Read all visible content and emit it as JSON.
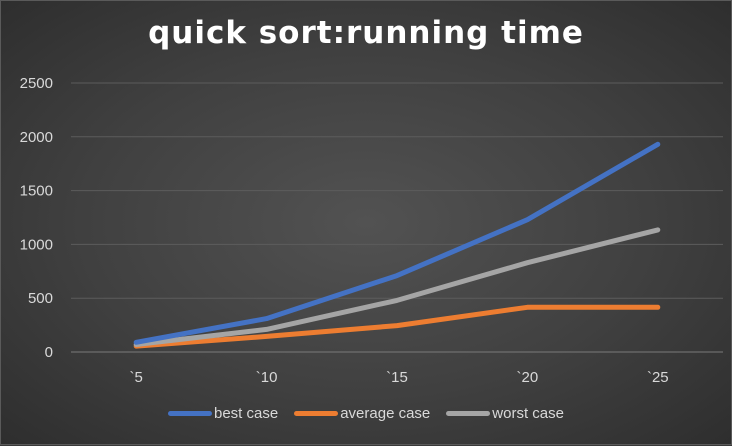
{
  "chart_data": {
    "type": "line",
    "title": "quick sort:running time",
    "categories": [
      "`5",
      "`10",
      "`15",
      "`20",
      "`25"
    ],
    "series": [
      {
        "name": "best case",
        "color": "#4472c4",
        "values": [
          90,
          310,
          710,
          1230,
          1930
        ]
      },
      {
        "name": "average case",
        "color": "#ed7d31",
        "values": [
          55,
          145,
          245,
          415,
          415
        ]
      },
      {
        "name": "worst case",
        "color": "#a5a5a5",
        "values": [
          70,
          210,
          480,
          830,
          1135
        ]
      }
    ],
    "y_ticks": [
      "0",
      "500",
      "1000",
      "1500",
      "2000",
      "2500"
    ],
    "ylim": [
      0,
      2500
    ],
    "grid": true,
    "legend_position": "bottom"
  }
}
